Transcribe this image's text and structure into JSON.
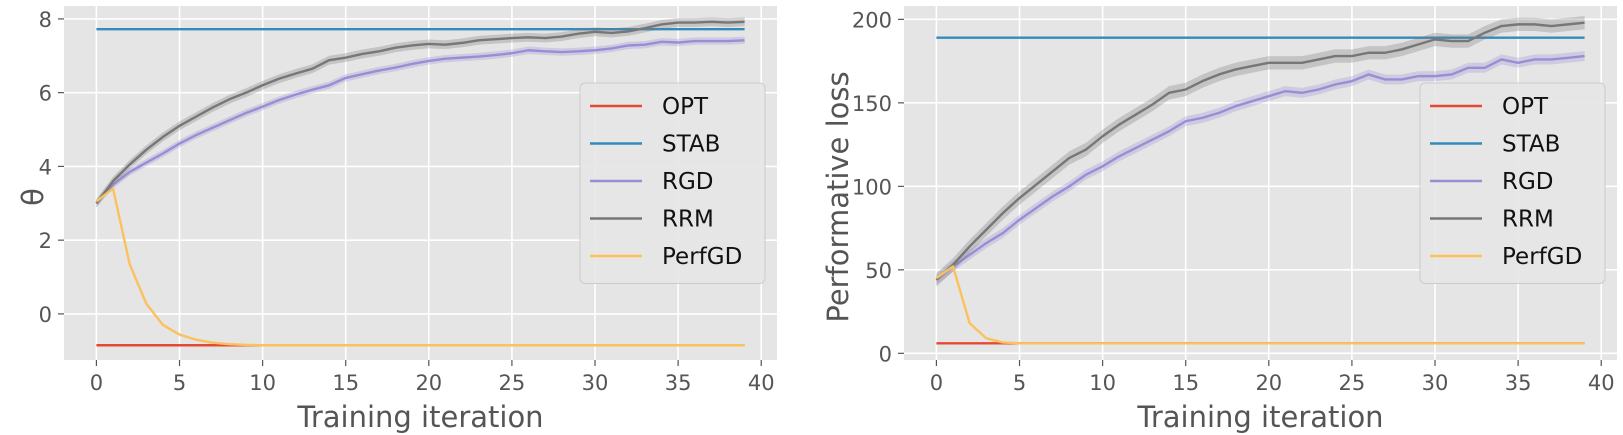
{
  "chart_data": [
    {
      "type": "line",
      "xlabel": "Training iteration",
      "ylabel": "θ",
      "xlim": [
        -1.95,
        40.95
      ],
      "ylim": [
        -1.25,
        8.35
      ],
      "xticks": [
        0,
        5,
        10,
        15,
        20,
        25,
        30,
        35,
        40
      ],
      "yticks": [
        0,
        2,
        4,
        6,
        8
      ],
      "xtick_labels": [
        "0",
        "5",
        "10",
        "15",
        "20",
        "25",
        "30",
        "35",
        "40"
      ],
      "ytick_labels": [
        "0",
        "2",
        "4",
        "6",
        "8"
      ],
      "grid": true,
      "legend_position": "center-right",
      "series": [
        {
          "name": "OPT",
          "color": "#E24A33",
          "x": [
            0,
            39
          ],
          "y": [
            -0.85,
            -0.85
          ]
        },
        {
          "name": "STAB",
          "color": "#348ABD",
          "x": [
            0,
            39
          ],
          "y": [
            7.72,
            7.72
          ]
        },
        {
          "name": "RGD",
          "color": "#988ED5",
          "band": 0.1,
          "x": [
            0,
            1,
            2,
            3,
            4,
            5,
            6,
            7,
            8,
            9,
            10,
            11,
            12,
            13,
            14,
            15,
            16,
            17,
            18,
            19,
            20,
            21,
            22,
            23,
            24,
            25,
            26,
            27,
            28,
            29,
            30,
            31,
            32,
            33,
            34,
            35,
            36,
            37,
            38,
            39
          ],
          "y": [
            3.0,
            3.5,
            3.85,
            4.1,
            4.35,
            4.62,
            4.85,
            5.05,
            5.25,
            5.45,
            5.62,
            5.8,
            5.95,
            6.08,
            6.2,
            6.4,
            6.5,
            6.6,
            6.68,
            6.78,
            6.86,
            6.92,
            6.95,
            6.98,
            7.02,
            7.07,
            7.15,
            7.12,
            7.1,
            7.12,
            7.15,
            7.2,
            7.28,
            7.3,
            7.38,
            7.36,
            7.4,
            7.4,
            7.4,
            7.42
          ]
        },
        {
          "name": "RRM",
          "color": "#777777",
          "band": 0.12,
          "x": [
            0,
            1,
            2,
            3,
            4,
            5,
            6,
            7,
            8,
            9,
            10,
            11,
            12,
            13,
            14,
            15,
            16,
            17,
            18,
            19,
            20,
            21,
            22,
            23,
            24,
            25,
            26,
            27,
            28,
            29,
            30,
            31,
            32,
            33,
            34,
            35,
            36,
            37,
            38,
            39
          ],
          "y": [
            3.0,
            3.6,
            4.05,
            4.45,
            4.8,
            5.1,
            5.35,
            5.6,
            5.82,
            6.0,
            6.2,
            6.38,
            6.52,
            6.65,
            6.88,
            6.95,
            7.05,
            7.12,
            7.22,
            7.28,
            7.32,
            7.3,
            7.35,
            7.42,
            7.45,
            7.48,
            7.5,
            7.48,
            7.52,
            7.6,
            7.65,
            7.62,
            7.66,
            7.75,
            7.85,
            7.9,
            7.9,
            7.92,
            7.9,
            7.92
          ]
        },
        {
          "name": "PerfGD",
          "color": "#FBC15E",
          "x": [
            0,
            1,
            2,
            3,
            4,
            5,
            6,
            7,
            8,
            9,
            10,
            11,
            12,
            39
          ],
          "y": [
            3.05,
            3.4,
            1.35,
            0.28,
            -0.3,
            -0.56,
            -0.7,
            -0.78,
            -0.82,
            -0.84,
            -0.85,
            -0.85,
            -0.85,
            -0.85
          ]
        }
      ]
    },
    {
      "type": "line",
      "xlabel": "Training iteration",
      "ylabel": "Performative loss",
      "xlim": [
        -1.95,
        40.95
      ],
      "ylim": [
        -4,
        208
      ],
      "xticks": [
        0,
        5,
        10,
        15,
        20,
        25,
        30,
        35,
        40
      ],
      "yticks": [
        0,
        50,
        100,
        150,
        200
      ],
      "xtick_labels": [
        "0",
        "5",
        "10",
        "15",
        "20",
        "25",
        "30",
        "35",
        "40"
      ],
      "ytick_labels": [
        "0",
        "50",
        "100",
        "150",
        "200"
      ],
      "grid": true,
      "legend_position": "center-right",
      "series": [
        {
          "name": "OPT",
          "color": "#E24A33",
          "x": [
            0,
            39
          ],
          "y": [
            6,
            6
          ]
        },
        {
          "name": "STAB",
          "color": "#348ABD",
          "x": [
            0,
            39
          ],
          "y": [
            189,
            189
          ]
        },
        {
          "name": "RGD",
          "color": "#988ED5",
          "band": 3,
          "x": [
            0,
            1,
            2,
            3,
            4,
            5,
            6,
            7,
            8,
            9,
            10,
            11,
            12,
            13,
            14,
            15,
            16,
            17,
            18,
            19,
            20,
            21,
            22,
            23,
            24,
            25,
            26,
            27,
            28,
            29,
            30,
            31,
            32,
            33,
            34,
            35,
            36,
            37,
            38,
            39
          ],
          "y": [
            44,
            52,
            59,
            66,
            72,
            80,
            87,
            94,
            100,
            107,
            112,
            118,
            123,
            128,
            133,
            139,
            141,
            144,
            148,
            151,
            154,
            157,
            156,
            158,
            161,
            163,
            167,
            164,
            164,
            166,
            166,
            167,
            171,
            171,
            176,
            174,
            176,
            176,
            177,
            178
          ]
        },
        {
          "name": "RRM",
          "color": "#777777",
          "band": 4,
          "x": [
            0,
            1,
            2,
            3,
            4,
            5,
            6,
            7,
            8,
            9,
            10,
            11,
            12,
            13,
            14,
            15,
            16,
            17,
            18,
            19,
            20,
            21,
            22,
            23,
            24,
            25,
            26,
            27,
            28,
            29,
            30,
            31,
            32,
            33,
            34,
            35,
            36,
            37,
            38,
            39
          ],
          "y": [
            44,
            53,
            64,
            74,
            84,
            93,
            101,
            109,
            117,
            122,
            130,
            137,
            143,
            149,
            156,
            158,
            163,
            167,
            170,
            172,
            174,
            174,
            174,
            176,
            178,
            178,
            180,
            180,
            182,
            185,
            188,
            187,
            187,
            192,
            196,
            197,
            197,
            196,
            197,
            198
          ]
        },
        {
          "name": "PerfGD",
          "color": "#FBC15E",
          "x": [
            0,
            1,
            2,
            3,
            4,
            5,
            6,
            39
          ],
          "y": [
            45,
            52,
            18,
            9,
            6.5,
            6,
            6,
            6
          ]
        }
      ]
    }
  ]
}
